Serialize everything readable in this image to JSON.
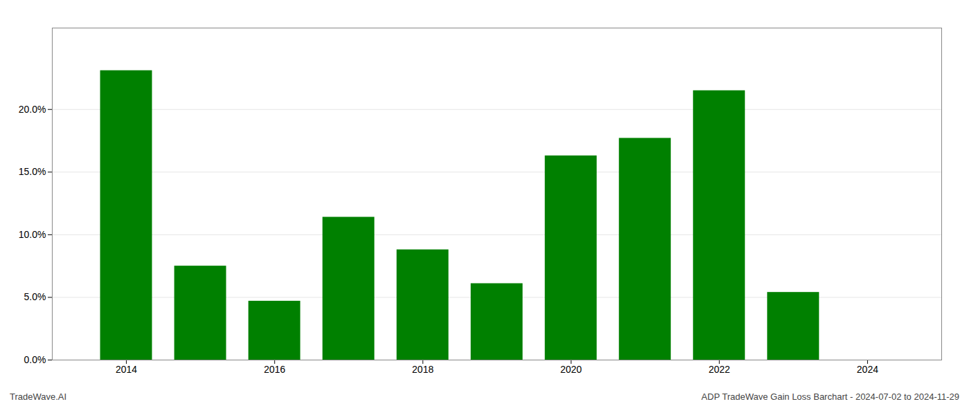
{
  "chart_data": {
    "type": "bar",
    "x": [
      2014,
      2015,
      2016,
      2017,
      2018,
      2019,
      2020,
      2021,
      2022,
      2023
    ],
    "values": [
      0.231,
      0.075,
      0.047,
      0.114,
      0.088,
      0.061,
      0.163,
      0.177,
      0.215,
      0.054
    ],
    "color": "#008000",
    "xlim": [
      2013.0,
      2025.0
    ],
    "xticks": [
      2014,
      2016,
      2018,
      2020,
      2022,
      2024
    ],
    "ylim": [
      0.0,
      0.265
    ],
    "yticks": [
      {
        "value": 0.0,
        "label": "0.0%"
      },
      {
        "value": 0.05,
        "label": "5.0%"
      },
      {
        "value": 0.1,
        "label": "10.0%"
      },
      {
        "value": 0.15,
        "label": "15.0%"
      },
      {
        "value": 0.2,
        "label": "20.0%"
      }
    ],
    "grid": true,
    "annotations": [
      "TradeWave.AI",
      "ADP TradeWave Gain Loss Barchart - 2024-07-02 to 2024-11-29"
    ]
  }
}
